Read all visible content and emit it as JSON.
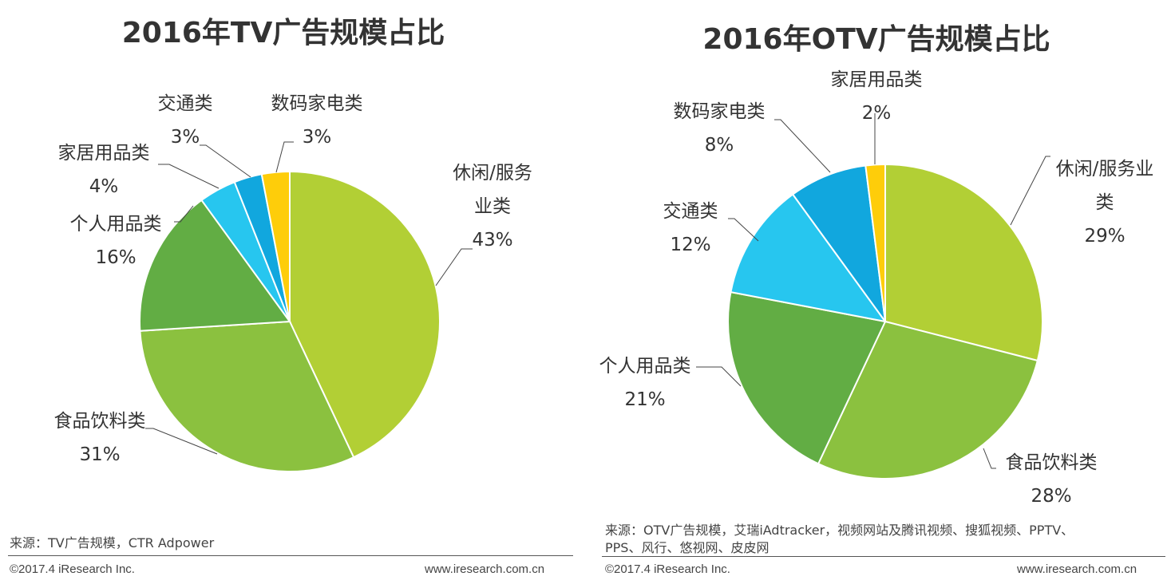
{
  "chart_data": [
    {
      "type": "pie",
      "title": "2016年TV广告规模占比",
      "slices": [
        {
          "label_lines": [
            "休闲/服务",
            "业类"
          ],
          "value": 43,
          "pct": "43%",
          "color": "#b2cf35"
        },
        {
          "label_lines": [
            "食品饮料类"
          ],
          "value": 31,
          "pct": "31%",
          "color": "#8bc13f"
        },
        {
          "label_lines": [
            "个人用品类"
          ],
          "value": 16,
          "pct": "16%",
          "color": "#62ad44"
        },
        {
          "label_lines": [
            "家居用品类"
          ],
          "value": 4,
          "pct": "4%",
          "color": "#27c6ef"
        },
        {
          "label_lines": [
            "交通类"
          ],
          "value": 3,
          "pct": "3%",
          "color": "#11a7de"
        },
        {
          "label_lines": [
            "数码家电类"
          ],
          "value": 3,
          "pct": "3%",
          "color": "#fecd0a"
        }
      ]
    },
    {
      "type": "pie",
      "title": "2016年OTV广告规模占比",
      "slices": [
        {
          "label_lines": [
            "休闲/服务业",
            "类"
          ],
          "value": 29,
          "pct": "29%",
          "color": "#b2cf35"
        },
        {
          "label_lines": [
            "食品饮料类"
          ],
          "value": 28,
          "pct": "28%",
          "color": "#8bc13f"
        },
        {
          "label_lines": [
            "个人用品类"
          ],
          "value": 21,
          "pct": "21%",
          "color": "#62ad44"
        },
        {
          "label_lines": [
            "交通类"
          ],
          "value": 12,
          "pct": "12%",
          "color": "#27c6ef"
        },
        {
          "label_lines": [
            "数码家电类"
          ],
          "value": 8,
          "pct": "8%",
          "color": "#11a7de"
        },
        {
          "label_lines": [
            "家居用品类"
          ],
          "value": 2,
          "pct": "2%",
          "color": "#fecd0a"
        }
      ]
    }
  ],
  "left": {
    "source": "来源：TV广告规模，CTR  Adpower",
    "copyright": "©2017.4 iResearch Inc.",
    "website": "www.iresearch.com.cn"
  },
  "right": {
    "source_line1": "来源：OTV广告规模，艾瑞iAdtracker，视频网站及腾讯视频、搜狐视频、PPTV、",
    "source_line2": "PPS、风行、悠视网、皮皮网",
    "copyright": "©2017.4 iResearch Inc.",
    "website": "www.iresearch.com.cn"
  }
}
